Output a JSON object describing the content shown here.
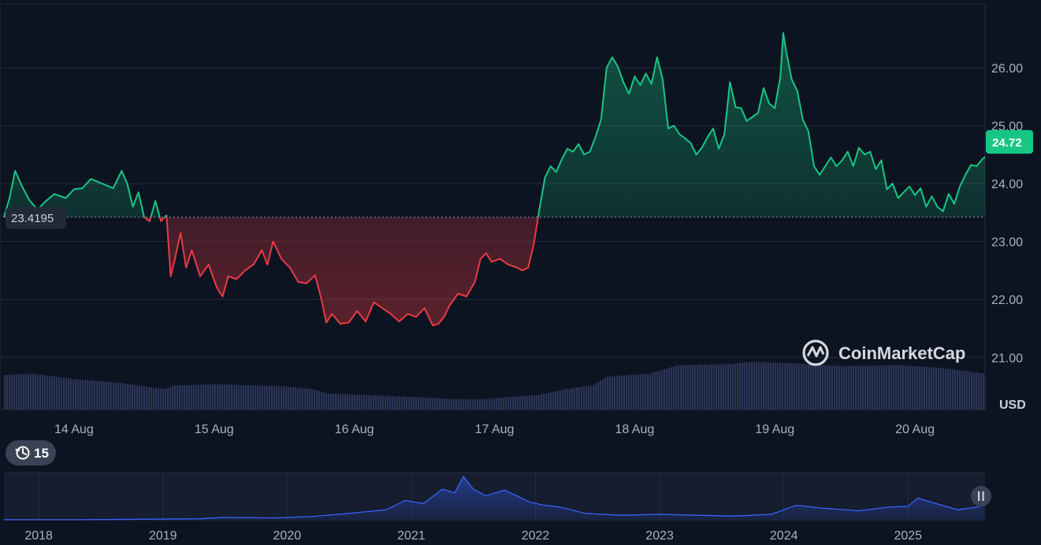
{
  "chart_data": [
    {
      "type": "area",
      "currency_label": "USD",
      "baseline": 23.4195,
      "baseline_label": "23.4195",
      "current_price": 24.72,
      "current_price_label": "24.72",
      "y_ticks": [
        "26.00",
        "25.00",
        "24.00",
        "23.00",
        "22.00",
        "21.00"
      ],
      "ylim": [
        20.1,
        27.1
      ],
      "x_ticks": [
        "14 Aug",
        "15 Aug",
        "16 Aug",
        "17 Aug",
        "18 Aug",
        "19 Aug",
        "20 Aug"
      ],
      "x_tick_pos": [
        0.5,
        1.5,
        2.5,
        3.5,
        4.5,
        5.5,
        6.5
      ],
      "xlim": [
        0.0,
        7.0
      ],
      "colors": {
        "up": "#16c784",
        "down": "#ea3943",
        "volume": "#2b3558",
        "grid": "#222b3d"
      },
      "price_series": [
        [
          0.0,
          23.42
        ],
        [
          0.04,
          23.75
        ],
        [
          0.08,
          24.22
        ],
        [
          0.13,
          23.95
        ],
        [
          0.18,
          23.72
        ],
        [
          0.24,
          23.55
        ],
        [
          0.3,
          23.7
        ],
        [
          0.36,
          23.82
        ],
        [
          0.44,
          23.75
        ],
        [
          0.5,
          23.9
        ],
        [
          0.56,
          23.92
        ],
        [
          0.62,
          24.08
        ],
        [
          0.7,
          24.0
        ],
        [
          0.78,
          23.92
        ],
        [
          0.84,
          24.22
        ],
        [
          0.88,
          24.0
        ],
        [
          0.92,
          23.6
        ],
        [
          0.96,
          23.85
        ],
        [
          1.0,
          23.42
        ],
        [
          1.04,
          23.35
        ],
        [
          1.08,
          23.7
        ],
        [
          1.12,
          23.35
        ],
        [
          1.16,
          23.45
        ],
        [
          1.19,
          22.4
        ],
        [
          1.22,
          22.7
        ],
        [
          1.26,
          23.15
        ],
        [
          1.3,
          22.55
        ],
        [
          1.34,
          22.85
        ],
        [
          1.4,
          22.4
        ],
        [
          1.46,
          22.6
        ],
        [
          1.52,
          22.2
        ],
        [
          1.56,
          22.05
        ],
        [
          1.6,
          22.4
        ],
        [
          1.66,
          22.35
        ],
        [
          1.72,
          22.5
        ],
        [
          1.78,
          22.6
        ],
        [
          1.84,
          22.85
        ],
        [
          1.88,
          22.6
        ],
        [
          1.92,
          23.0
        ],
        [
          1.98,
          22.7
        ],
        [
          2.04,
          22.55
        ],
        [
          2.1,
          22.3
        ],
        [
          2.16,
          22.28
        ],
        [
          2.22,
          22.42
        ],
        [
          2.26,
          22.05
        ],
        [
          2.3,
          21.6
        ],
        [
          2.34,
          21.75
        ],
        [
          2.4,
          21.58
        ],
        [
          2.46,
          21.6
        ],
        [
          2.52,
          21.8
        ],
        [
          2.58,
          21.62
        ],
        [
          2.64,
          21.95
        ],
        [
          2.7,
          21.85
        ],
        [
          2.76,
          21.75
        ],
        [
          2.82,
          21.62
        ],
        [
          2.88,
          21.75
        ],
        [
          2.94,
          21.7
        ],
        [
          3.0,
          21.85
        ],
        [
          3.06,
          21.55
        ],
        [
          3.1,
          21.58
        ],
        [
          3.14,
          21.7
        ],
        [
          3.18,
          21.9
        ],
        [
          3.24,
          22.1
        ],
        [
          3.3,
          22.05
        ],
        [
          3.36,
          22.3
        ],
        [
          3.4,
          22.7
        ],
        [
          3.44,
          22.8
        ],
        [
          3.48,
          22.65
        ],
        [
          3.54,
          22.7
        ],
        [
          3.6,
          22.6
        ],
        [
          3.66,
          22.55
        ],
        [
          3.7,
          22.5
        ],
        [
          3.74,
          22.55
        ],
        [
          3.78,
          22.95
        ],
        [
          3.82,
          23.55
        ],
        [
          3.86,
          24.1
        ],
        [
          3.9,
          24.3
        ],
        [
          3.94,
          24.2
        ],
        [
          3.98,
          24.42
        ],
        [
          4.02,
          24.6
        ],
        [
          4.06,
          24.55
        ],
        [
          4.1,
          24.68
        ],
        [
          4.14,
          24.5
        ],
        [
          4.18,
          24.55
        ],
        [
          4.22,
          24.8
        ],
        [
          4.26,
          25.1
        ],
        [
          4.3,
          26.0
        ],
        [
          4.34,
          26.18
        ],
        [
          4.38,
          26.02
        ],
        [
          4.42,
          25.75
        ],
        [
          4.46,
          25.55
        ],
        [
          4.5,
          25.85
        ],
        [
          4.54,
          25.7
        ],
        [
          4.58,
          25.9
        ],
        [
          4.62,
          25.72
        ],
        [
          4.66,
          26.18
        ],
        [
          4.7,
          25.8
        ],
        [
          4.74,
          24.95
        ],
        [
          4.78,
          25.0
        ],
        [
          4.82,
          24.85
        ],
        [
          4.86,
          24.78
        ],
        [
          4.9,
          24.7
        ],
        [
          4.94,
          24.5
        ],
        [
          4.98,
          24.62
        ],
        [
          5.02,
          24.8
        ],
        [
          5.06,
          24.95
        ],
        [
          5.1,
          24.6
        ],
        [
          5.14,
          24.85
        ],
        [
          5.18,
          25.75
        ],
        [
          5.22,
          25.32
        ],
        [
          5.26,
          25.3
        ],
        [
          5.3,
          25.08
        ],
        [
          5.34,
          25.15
        ],
        [
          5.38,
          25.22
        ],
        [
          5.42,
          25.65
        ],
        [
          5.46,
          25.38
        ],
        [
          5.5,
          25.3
        ],
        [
          5.54,
          25.85
        ],
        [
          5.56,
          26.6
        ],
        [
          5.58,
          26.3
        ],
        [
          5.62,
          25.8
        ],
        [
          5.66,
          25.6
        ],
        [
          5.7,
          25.1
        ],
        [
          5.74,
          24.9
        ],
        [
          5.78,
          24.3
        ],
        [
          5.82,
          24.15
        ],
        [
          5.86,
          24.3
        ],
        [
          5.9,
          24.45
        ],
        [
          5.94,
          24.3
        ],
        [
          5.98,
          24.4
        ],
        [
          6.02,
          24.55
        ],
        [
          6.06,
          24.3
        ],
        [
          6.1,
          24.62
        ],
        [
          6.14,
          24.5
        ],
        [
          6.18,
          24.55
        ],
        [
          6.22,
          24.25
        ],
        [
          6.26,
          24.4
        ],
        [
          6.3,
          23.9
        ],
        [
          6.34,
          24.0
        ],
        [
          6.38,
          23.75
        ],
        [
          6.42,
          23.85
        ],
        [
          6.46,
          23.95
        ],
        [
          6.5,
          23.8
        ],
        [
          6.54,
          23.92
        ],
        [
          6.58,
          23.6
        ],
        [
          6.62,
          23.78
        ],
        [
          6.66,
          23.6
        ],
        [
          6.7,
          23.52
        ],
        [
          6.74,
          23.82
        ],
        [
          6.78,
          23.65
        ],
        [
          6.82,
          23.95
        ],
        [
          6.86,
          24.15
        ],
        [
          6.9,
          24.32
        ],
        [
          6.94,
          24.3
        ],
        [
          6.98,
          24.42
        ],
        [
          7.02,
          24.5
        ],
        [
          7.06,
          24.6
        ],
        [
          7.1,
          24.72
        ]
      ],
      "volume_series": [
        [
          0.0,
          0.82
        ],
        [
          0.2,
          0.85
        ],
        [
          0.5,
          0.72
        ],
        [
          0.8,
          0.64
        ],
        [
          1.0,
          0.55
        ],
        [
          1.15,
          0.48
        ],
        [
          1.2,
          0.57
        ],
        [
          1.5,
          0.6
        ],
        [
          1.8,
          0.57
        ],
        [
          2.0,
          0.55
        ],
        [
          2.2,
          0.48
        ],
        [
          2.3,
          0.38
        ],
        [
          2.6,
          0.34
        ],
        [
          2.9,
          0.3
        ],
        [
          3.2,
          0.25
        ],
        [
          3.4,
          0.24
        ],
        [
          3.6,
          0.3
        ],
        [
          3.8,
          0.34
        ],
        [
          4.0,
          0.48
        ],
        [
          4.2,
          0.58
        ],
        [
          4.3,
          0.78
        ],
        [
          4.6,
          0.85
        ],
        [
          4.8,
          1.05
        ],
        [
          5.2,
          1.08
        ],
        [
          5.3,
          1.13
        ],
        [
          5.6,
          1.1
        ],
        [
          5.8,
          1.06
        ],
        [
          6.0,
          1.03
        ],
        [
          6.4,
          1.05
        ],
        [
          6.7,
          0.98
        ],
        [
          7.0,
          0.85
        ],
        [
          7.1,
          0.78
        ]
      ],
      "volume_max": 1.4
    },
    {
      "type": "area",
      "years": [
        "2018",
        "2019",
        "2020",
        "2021",
        "2022",
        "2023",
        "2024",
        "2025"
      ],
      "year_pos": [
        2018,
        2019,
        2020,
        2021,
        2022,
        2023,
        2024,
        2025
      ],
      "xlim": [
        2017.72,
        2025.62
      ],
      "colors": {
        "line": "#3861fb"
      },
      "series": [
        [
          2017.72,
          0.02
        ],
        [
          2018.3,
          0.02
        ],
        [
          2018.8,
          0.03
        ],
        [
          2019.3,
          0.04
        ],
        [
          2019.5,
          0.07
        ],
        [
          2019.9,
          0.06
        ],
        [
          2020.2,
          0.09
        ],
        [
          2020.5,
          0.16
        ],
        [
          2020.8,
          0.24
        ],
        [
          2020.95,
          0.45
        ],
        [
          2021.1,
          0.38
        ],
        [
          2021.25,
          0.7
        ],
        [
          2021.35,
          0.62
        ],
        [
          2021.42,
          0.98
        ],
        [
          2021.5,
          0.7
        ],
        [
          2021.6,
          0.55
        ],
        [
          2021.75,
          0.68
        ],
        [
          2021.85,
          0.55
        ],
        [
          2021.95,
          0.42
        ],
        [
          2022.05,
          0.35
        ],
        [
          2022.2,
          0.3
        ],
        [
          2022.4,
          0.16
        ],
        [
          2022.7,
          0.12
        ],
        [
          2023.0,
          0.14
        ],
        [
          2023.3,
          0.12
        ],
        [
          2023.6,
          0.1
        ],
        [
          2023.9,
          0.14
        ],
        [
          2024.1,
          0.34
        ],
        [
          2024.3,
          0.28
        ],
        [
          2024.6,
          0.22
        ],
        [
          2024.85,
          0.3
        ],
        [
          2025.0,
          0.32
        ],
        [
          2025.08,
          0.5
        ],
        [
          2025.2,
          0.4
        ],
        [
          2025.4,
          0.24
        ],
        [
          2025.55,
          0.3
        ],
        [
          2025.62,
          0.36
        ]
      ],
      "period_badge": "15"
    }
  ],
  "watermark": {
    "brand": "CoinMarketCap"
  },
  "icons": [
    "history-icon",
    "pause-icon",
    "coinmarketcap-logo-icon"
  ]
}
